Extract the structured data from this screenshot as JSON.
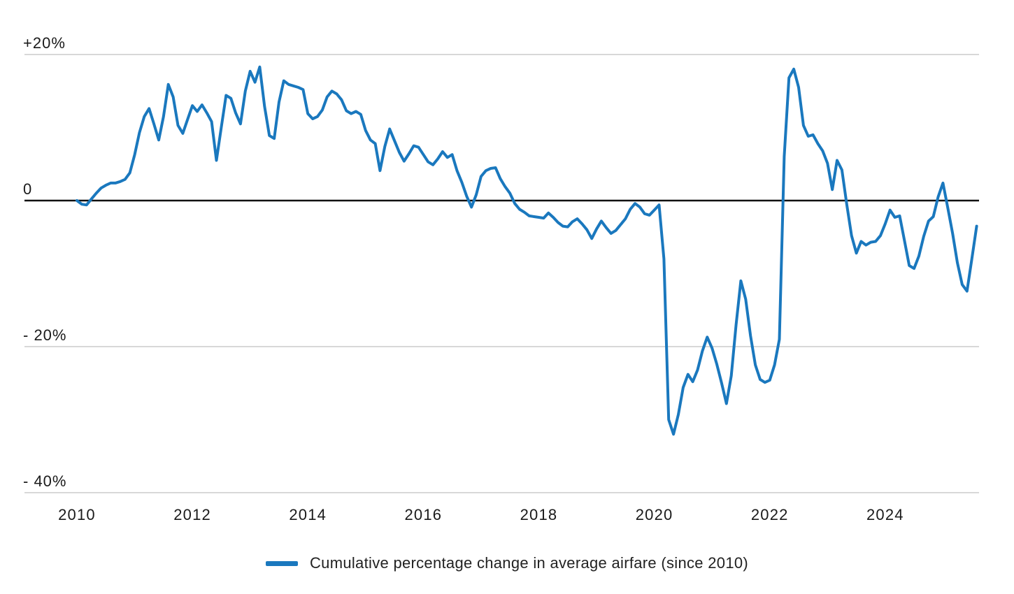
{
  "page": {
    "background": "#ffffff"
  },
  "colors": {
    "line": "#1a78be",
    "grid": "#cccccc",
    "zero_axis": "#111111",
    "text": "#1a1a1a"
  },
  "legend": {
    "label": "Cumulative percentage change in average airfare (since 2010)"
  },
  "chart_data": {
    "type": "line",
    "title": "",
    "xlabel": "",
    "ylabel": "",
    "frequency": "monthly",
    "x_start": "2010-01",
    "x_end": "2025-08",
    "ylim": [
      -43,
      24
    ],
    "grid": "horizontal",
    "legend_position": "bottom-center",
    "y_ticks": [
      {
        "value": 20,
        "label": "+20%"
      },
      {
        "value": 0,
        "label": "0"
      },
      {
        "value": -20,
        "label": "- 20%"
      },
      {
        "value": -40,
        "label": "- 40%"
      }
    ],
    "x_ticks": [
      {
        "year": 2010,
        "label": "2010"
      },
      {
        "year": 2012,
        "label": "2012"
      },
      {
        "year": 2014,
        "label": "2014"
      },
      {
        "year": 2016,
        "label": "2016"
      },
      {
        "year": 2018,
        "label": "2018"
      },
      {
        "year": 2020,
        "label": "2020"
      },
      {
        "year": 2022,
        "label": "2022"
      },
      {
        "year": 2024,
        "label": "2024"
      }
    ],
    "series": [
      {
        "name": "Cumulative percentage change in average airfare (since 2010)",
        "color": "#1a78be",
        "values": [
          0.0,
          -0.5,
          -0.6,
          0.2,
          1.0,
          1.7,
          2.1,
          2.4,
          2.4,
          2.6,
          2.9,
          3.8,
          6.3,
          9.3,
          11.5,
          12.6,
          10.5,
          8.3,
          11.5,
          15.9,
          14.2,
          10.3,
          9.2,
          11.1,
          13.0,
          12.2,
          13.1,
          12.0,
          10.8,
          5.5,
          10.0,
          14.4,
          14.0,
          12.0,
          10.5,
          15.0,
          17.7,
          16.2,
          18.3,
          12.9,
          8.9,
          8.5,
          13.5,
          16.4,
          15.9,
          15.7,
          15.5,
          15.2,
          11.9,
          11.2,
          11.5,
          12.4,
          14.2,
          15.0,
          14.6,
          13.8,
          12.3,
          11.9,
          12.2,
          11.8,
          9.6,
          8.3,
          7.8,
          4.1,
          7.4,
          9.8,
          8.2,
          6.6,
          5.4,
          6.4,
          7.5,
          7.3,
          6.3,
          5.3,
          4.9,
          5.7,
          6.7,
          5.9,
          6.3,
          4.1,
          2.5,
          0.6,
          -0.9,
          0.8,
          3.3,
          4.1,
          4.4,
          4.5,
          3.0,
          1.9,
          1.0,
          -0.4,
          -1.2,
          -1.6,
          -2.1,
          -2.2,
          -2.3,
          -2.4,
          -1.7,
          -2.3,
          -3.0,
          -3.5,
          -3.6,
          -2.9,
          -2.5,
          -3.2,
          -4.0,
          -5.2,
          -3.9,
          -2.8,
          -3.7,
          -4.5,
          -4.1,
          -3.3,
          -2.5,
          -1.2,
          -0.4,
          -0.9,
          -1.8,
          -2.0,
          -1.3,
          -0.6,
          -8.0,
          -30.0,
          -32.0,
          -29.3,
          -25.6,
          -23.8,
          -24.8,
          -23.2,
          -20.6,
          -18.7,
          -20.2,
          -22.4,
          -25.0,
          -27.8,
          -24.0,
          -17.0,
          -11.0,
          -13.5,
          -18.5,
          -22.5,
          -24.5,
          -24.9,
          -24.6,
          -22.5,
          -19.0,
          6.0,
          16.8,
          18.0,
          15.5,
          10.3,
          8.8,
          9.0,
          7.8,
          6.8,
          5.1,
          1.5,
          5.5,
          4.2,
          -0.5,
          -4.8,
          -7.2,
          -5.6,
          -6.1,
          -5.7,
          -5.6,
          -4.8,
          -3.2,
          -1.3,
          -2.3,
          -2.1,
          -5.5,
          -8.9,
          -9.3,
          -7.6,
          -4.9,
          -2.8,
          -2.2,
          0.5,
          2.4,
          -1.0,
          -4.5,
          -8.5,
          -11.5,
          -12.4,
          -8.0,
          -3.5
        ]
      }
    ]
  }
}
